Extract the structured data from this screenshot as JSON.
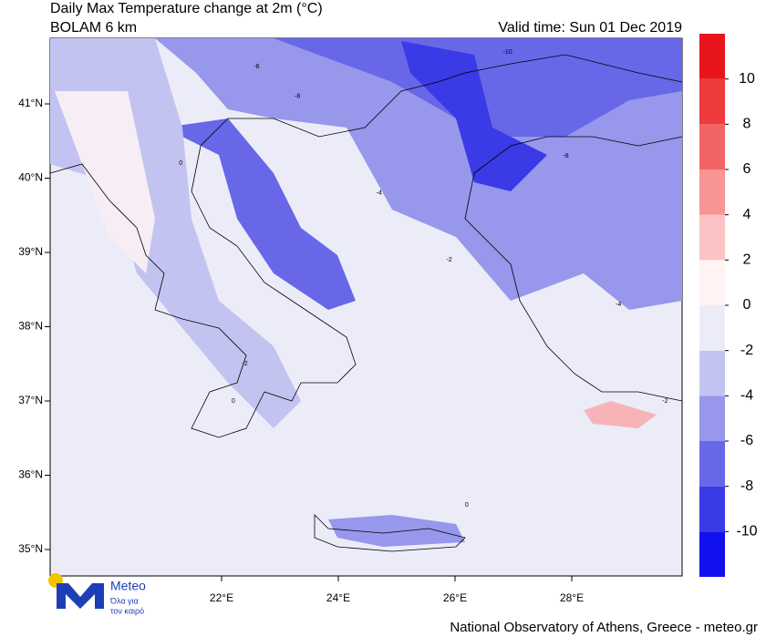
{
  "header": {
    "title": "Daily Max Temperature change at 2m (°C)",
    "subtitle": "BOLAM 6 km",
    "valid_time": "Valid time: Sun 01 Dec 2019"
  },
  "map": {
    "lat_ticks": [
      {
        "value": 41,
        "label": "41°N"
      },
      {
        "value": 40,
        "label": "40°N"
      },
      {
        "value": 39,
        "label": "39°N"
      },
      {
        "value": 38,
        "label": "38°N"
      },
      {
        "value": 37,
        "label": "37°N"
      },
      {
        "value": 36,
        "label": "36°N"
      },
      {
        "value": 35,
        "label": "35°N"
      }
    ],
    "lon_ticks": [
      {
        "value": 22,
        "label": "22°E"
      },
      {
        "value": 24,
        "label": "24°E"
      },
      {
        "value": 26,
        "label": "26°E"
      },
      {
        "value": 28,
        "label": "28°E"
      }
    ],
    "contour_labels": [
      {
        "lon": 21.3,
        "lat": 40.2,
        "label": 0
      },
      {
        "lon": 22.6,
        "lat": 41.5,
        "label": -6
      },
      {
        "lon": 23.3,
        "lat": 41.1,
        "label": -8
      },
      {
        "lon": 24.7,
        "lat": 39.8,
        "label": -4
      },
      {
        "lon": 25.9,
        "lat": 38.9,
        "label": -2
      },
      {
        "lon": 26.9,
        "lat": 41.7,
        "label": -10
      },
      {
        "lon": 27.9,
        "lat": 40.3,
        "label": -8
      },
      {
        "lon": 28.8,
        "lat": 38.3,
        "label": -4
      },
      {
        "lon": 22.4,
        "lat": 37.5,
        "label": -2
      },
      {
        "lon": 22.2,
        "lat": 37.0,
        "label": 0
      },
      {
        "lon": 26.2,
        "lat": 35.6,
        "label": 0
      },
      {
        "lon": 29.6,
        "lat": 37.0,
        "label": -2
      }
    ]
  },
  "colorbar": {
    "colors": [
      "#1111ee",
      "#3a3ae6",
      "#6767e8",
      "#9797ec",
      "#c3c3f2",
      "#ececf8",
      "#fff3f3",
      "#fbc3c3",
      "#f79494",
      "#f26464",
      "#ee3c3c",
      "#e8141c"
    ],
    "ticks": [
      -10,
      -8,
      -6,
      -4,
      -2,
      0,
      2,
      4,
      6,
      8,
      10
    ]
  },
  "logo": {
    "name": "Meteo",
    "tagline_1": "Όλα για",
    "tagline_2": "τον καιρό"
  },
  "footer": "National Observatory of Athens, Greece - meteo.gr"
}
